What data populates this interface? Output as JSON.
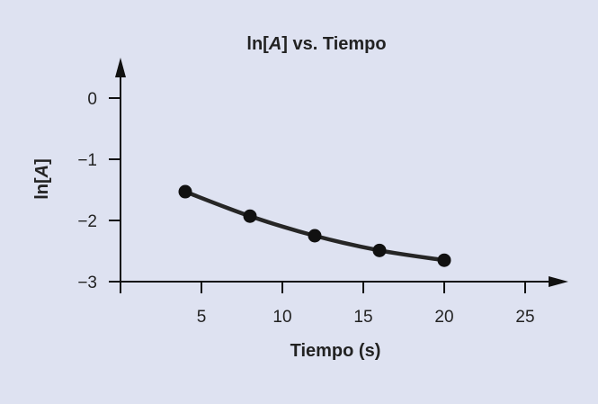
{
  "chart_data": {
    "type": "line",
    "title": "ln[A] vs. Tiempo",
    "xlabel": "Tiempo (s)",
    "ylabel": "ln[A]",
    "xlim": [
      0,
      25
    ],
    "ylim": [
      -3,
      0
    ],
    "xticks": [
      5,
      10,
      15,
      20,
      25
    ],
    "xtick_labels": [
      "5",
      "10",
      "15",
      "20",
      "25"
    ],
    "yticks": [
      0,
      -1,
      -2,
      -3
    ],
    "ytick_labels": [
      "0",
      "−1",
      "−2",
      "−3"
    ],
    "grid": false,
    "series": [
      {
        "x": [
          4,
          8,
          12,
          16,
          20
        ],
        "y": [
          -1.53,
          -1.93,
          -2.25,
          -2.49,
          -2.65
        ],
        "color": "#111111",
        "line_color": "#262626"
      }
    ]
  }
}
